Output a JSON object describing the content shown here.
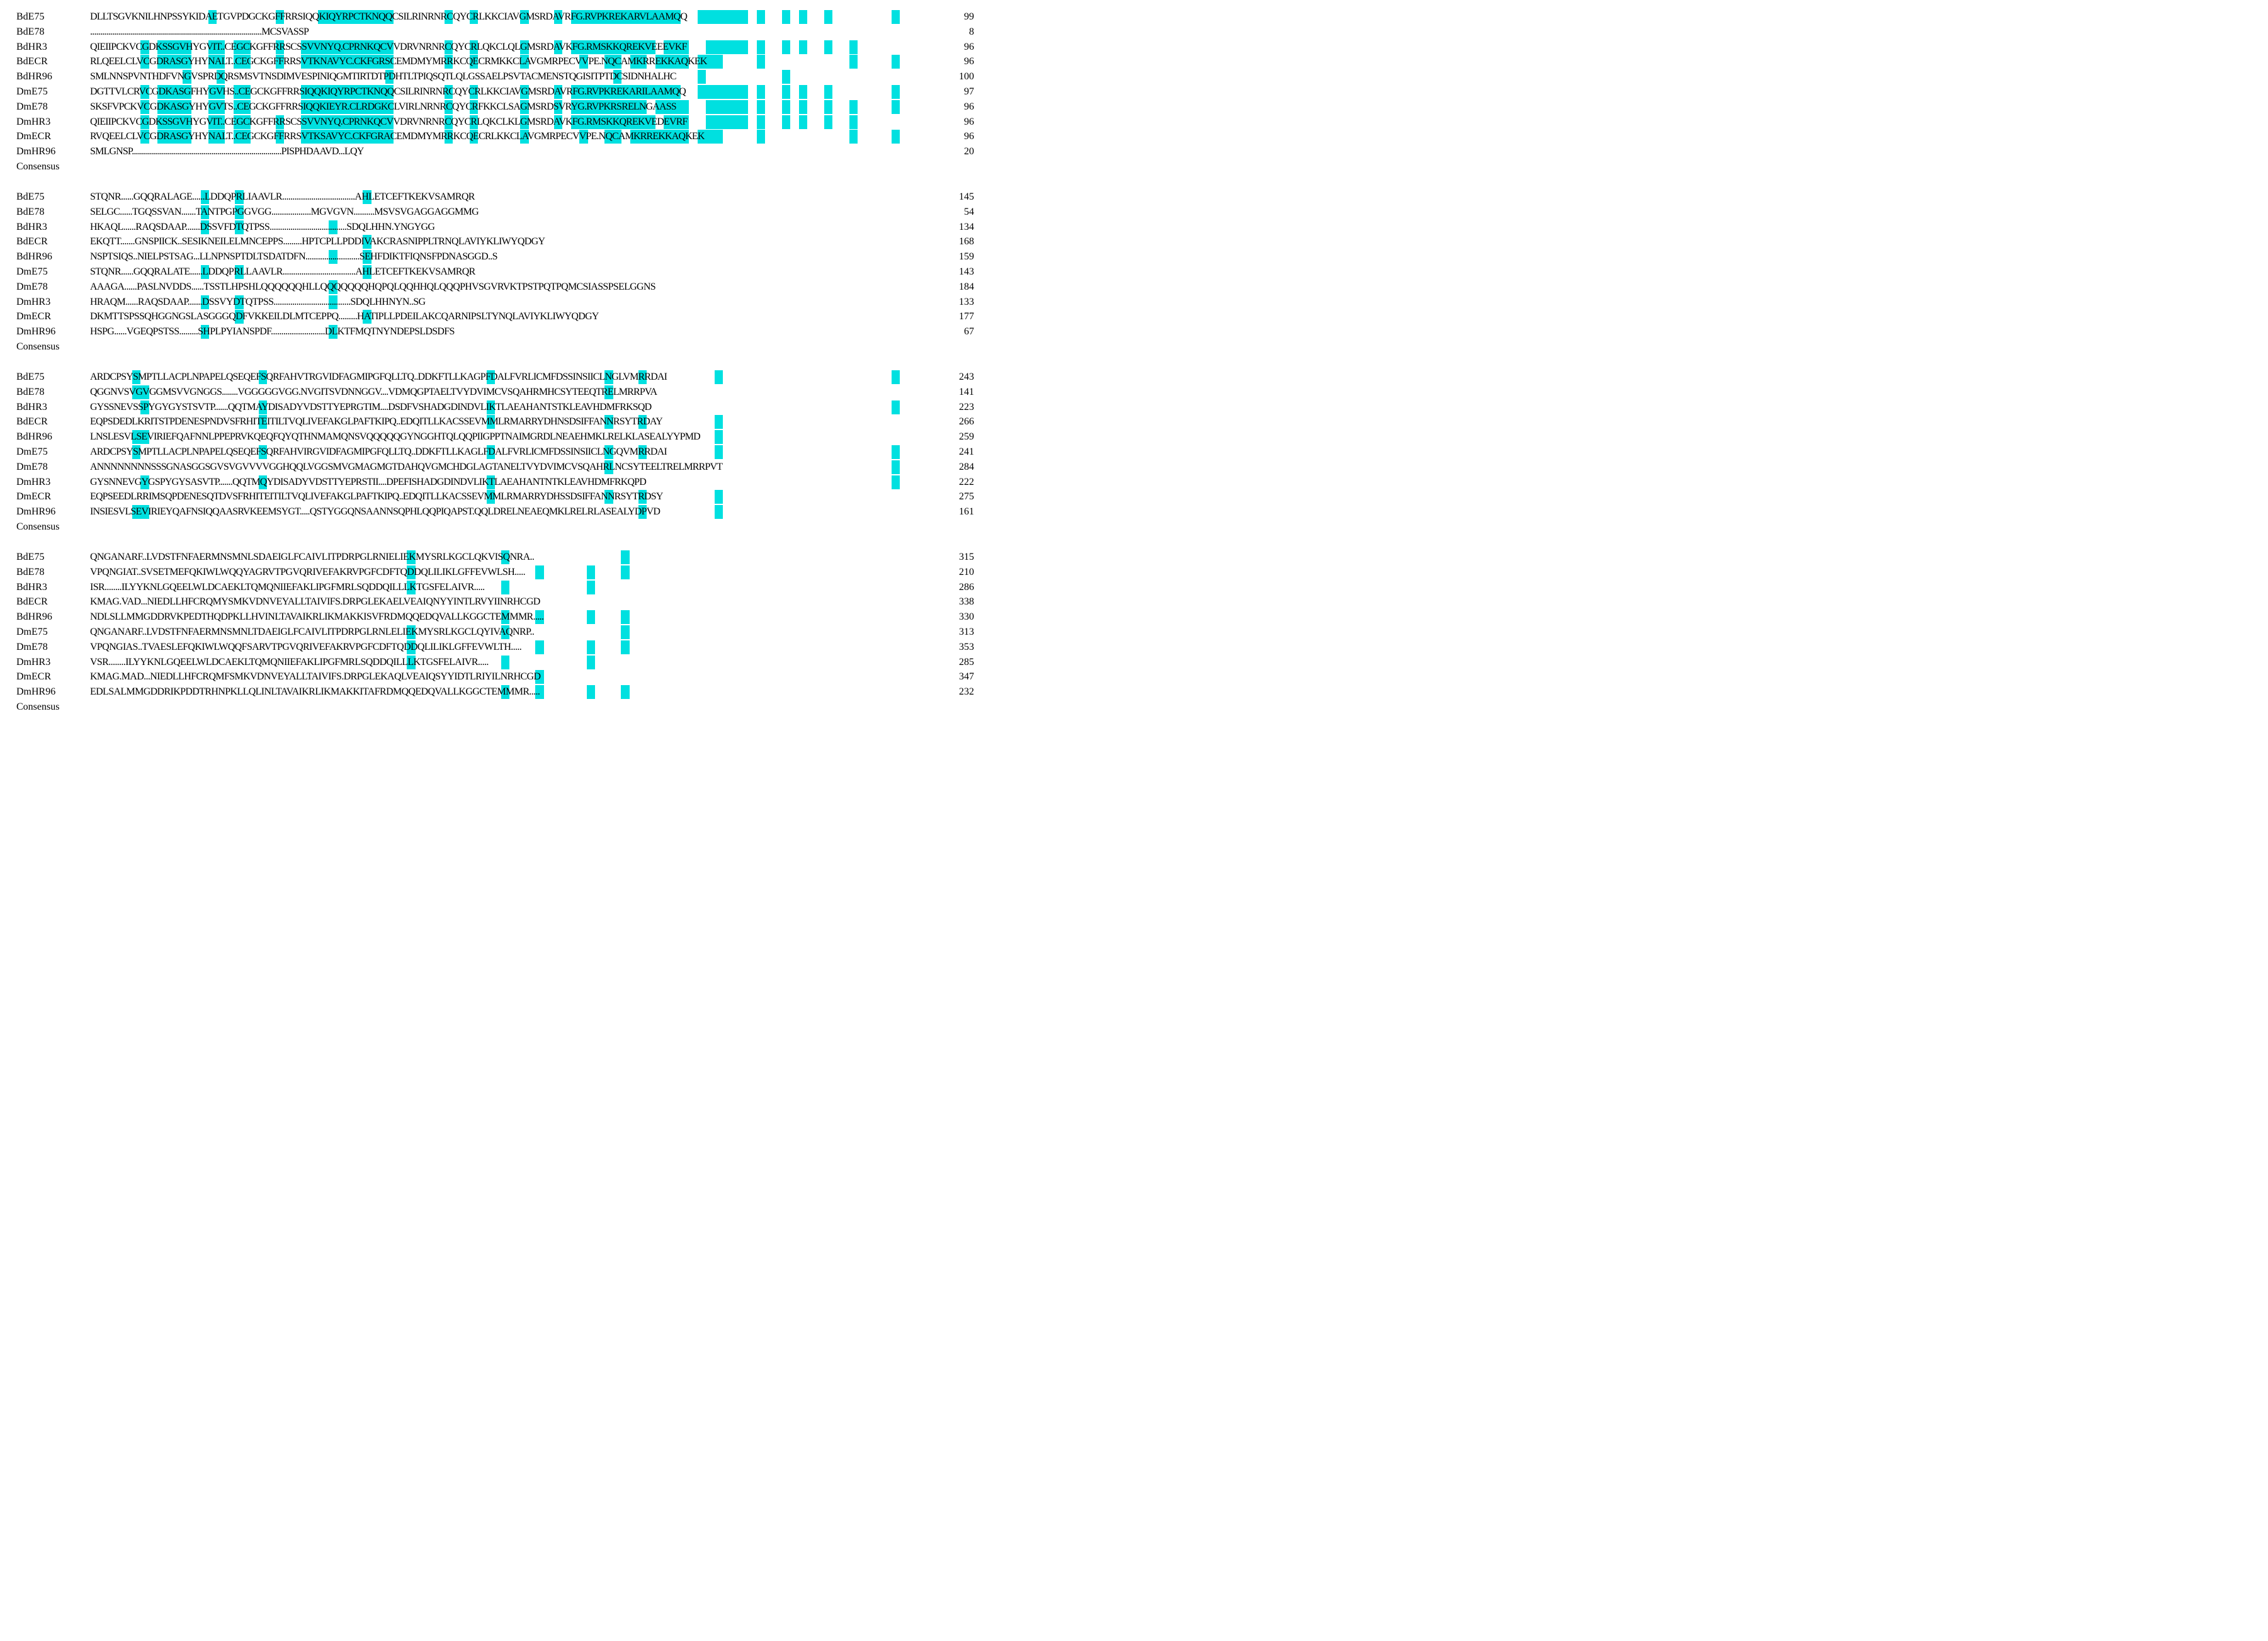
{
  "colors": {
    "conserved": "#00e0e0",
    "identical": "#ee6aa8"
  },
  "consensus_label": "Consensus",
  "blocks": [
    {
      "rows": [
        {
          "name": "BdE75",
          "seq": "DLLTSGVKNILHNPSSYKIDAETGVPDGCKGFFRRSIQQKIQYRPCTKNQQCSILRINRNRCQYCRLKKCIAVGMSRDAVRFG.RVPKREKARVLAAMQQ",
          "num": "99"
        },
        {
          "name": "BdE78",
          "seq": "......................................................................................MCSVASSP",
          "num": "8"
        },
        {
          "name": "BdHR3",
          "seq": "QIEIIPCKVCGDKSSGVHYGVIT..CEGCKGFFRRSCSSVVNYQ.CPRNKQCVVDRVNRNRCQYCRLQKCLQLGMSRDAVKFG.RMSKKQREKVEEEVKF",
          "num": "96"
        },
        {
          "name": "BdECR",
          "seq": "RLQEELCLVCGDRASGYHYNALT..CEGCKGFFRRSVTKNAVYC.CKFGRSCEMDMYMRRKCQECRMKKCLAVGMRPECVVPE.NQCAMKRREKKAQKEK",
          "num": "96"
        },
        {
          "name": "BdHR96",
          "seq": "SMLNNSPVNTHDFVNGVSPRDQRSMSVTNSDIMVESPINIQGMTIRTDTPDHTLTPIQSQTLQLGSSAELPSVTACMENSTQGISITPTDCSIDNHALHC",
          "num": "100"
        },
        {
          "name": "DmE75",
          "seq": "DGTTVLCRVCGDKASGFHYGVHS..CEGCKGFFRRSIQQKIQYRPCTKNQQCSILRINRNRCQYCRLKKCIAVGMSRDAVRFG.RVPKREKARILAAMQQ",
          "num": "97"
        },
        {
          "name": "DmE78",
          "seq": "SKSFVPCKVCGDKASGYHYGVTS..CEGCKGFFRRSIQQKIEYR.CLRDGKCLVIRLNRNRCQYCRFKKCLSAGMSRDSVRYG.RVPKRSRELNGAASS",
          "num": "96"
        },
        {
          "name": "DmHR3",
          "seq": "QIEIIPCKVCGDKSSGVHYGVIT..CEGCKGFFRRSCSSVVNYQ.CPRNKQCVVDRVNRNRCQYCRLQKCLKLGMSRDAVKFG.RMSKKQREKVEDEVRF",
          "num": "96"
        },
        {
          "name": "DmECR",
          "seq": "RVQEELCLVCGDRASGYHYNALT..CEGCKGFFRRSVTKSAVYC.CKFGRACEMDMYMRRKCQECRLKKCLAVGMRPECVVPE.NQCAMKRREKKAQKEK",
          "num": "96"
        },
        {
          "name": "DmHR96",
          "seq": "SMLGNSP...........................................................................PISPHDAAVD...LQY",
          "num": "20"
        }
      ]
    },
    {
      "rows": [
        {
          "name": "BdE75",
          "seq": "STQNR......GQQRALAGE......LDDQPRLIAAVLR...................................AHLETCEFTKEKVSAMRQR",
          "num": "145"
        },
        {
          "name": "BdE78",
          "seq": "SELGC......TGQSSVAN.......TANTPGPGGVGG...................MGVGVN..........MSVSVGAGGAGGMMG",
          "num": "54"
        },
        {
          "name": "BdHR3",
          "seq": "HKAQL......RAQSDAAP.......DSSVFDTQTPSS.....................................SDQLHHN.YNGYGG",
          "num": "134"
        },
        {
          "name": "BdECR",
          "seq": "EKQTT.......GNSPIICK..SESIKNEILELMNCEPPS.........HPTCPLLPDDIVAKCRASNIPPLTRNQLAVIYKLIWYQDGY",
          "num": "168"
        },
        {
          "name": "BdHR96",
          "seq": "NSPTSIQS..NIELPSTSAG...LLNPNSPTDLTSDATDFN..........................SEHFDIKTFIQNSFPDNASGGD..S",
          "num": "159"
        },
        {
          "name": "DmE75",
          "seq": "STQNR......GQQRALATE......LDDQPRLLAAVLR...................................AHLETCEFTKEKVSAMRQR",
          "num": "143"
        },
        {
          "name": "DmE78",
          "seq": "AAAGA......PASLNVDDS......TSSTLHPSHLQQQQQQHLLQQQQQQQHQPQLQQHHQLQQQPHVSGVRVKTPSTPQTPQMCSIASSPSELGGNS",
          "num": "184"
        },
        {
          "name": "DmHR3",
          "seq": "HRAQM......RAQSDAAP.......DSSVYDTQTPSS.....................................SDQLHHNYN..SG",
          "num": "133"
        },
        {
          "name": "DmECR",
          "seq": "DKMTTSPSSQHGGNGSLASGGGQDFVKKEILDLMTCEPPQ.........HATIPLLPDEILAKCQARNIPSLTYNQLAVIYKLIWYQDGY",
          "num": "177"
        },
        {
          "name": "DmHR96",
          "seq": "HSPG......VGEQPSTSS.........SHPLPYIANSPDF..........................DLKTFMQTNYNDEPSLDSDFS",
          "num": "67"
        }
      ]
    },
    {
      "rows": [
        {
          "name": "BdE75",
          "seq": "ARDCPSYSMPTLLACPLNPAPELQSEQEFSQRFAHVTRGVIDFAGMIPGFQLLTQ..DDKFTLLKAGPFDALFVRLICMFDSSINSIICLNGLVMRRDAI",
          "num": "243"
        },
        {
          "name": "BdE78",
          "seq": "QGGNVSVGVGGMSVVGNGGS........VGGGGGVGG.NVGITSVDNNGGV....VDMQGPTAELTVYDVIMCVSQAHRMHCSYTEEQTRELMRRPVA",
          "num": "141"
        },
        {
          "name": "BdHR3",
          "seq": "GYSSNEVSSPYGYGYSTSVTP.......QQTMAYDISADYVDSTTYEPRGTIM....DSDFVSHADGDINDVLIKTLAEAHANTSTKLEAVHDMFRKSQD",
          "num": "223"
        },
        {
          "name": "BdECR",
          "seq": "EQPSDEDLKRITSTPDENESPNDVSFRHITEITILTVQLIVEFAKGLPAFTKIPQ..EDQITLLKACSSEVMMLRMARRYDHNSDSIFFANNRSYTRDAY",
          "num": "266"
        },
        {
          "name": "BdHR96",
          "seq": "LNSLESVLSEVIRIEFQAFNNLPPEPRVKQEQFQYQTHNMAMQNSVQQQQQGYNGGHTQLQQPIIGPPTNAIMGRDLNEAEHMKLRELKLASEALYYPMD",
          "num": "259"
        },
        {
          "name": "DmE75",
          "seq": "ARDCPSYSMPTLLACPLNPAPELQSEQEFSQRFAHVIRGVIDFAGMIPGFQLLTQ..DDKFTLLKAGLFDALFVRLICMFDSSINSIICLNGQVMRRDAI",
          "num": "241"
        },
        {
          "name": "DmE78",
          "seq": "ANNNNNNNNSSSGNASGGSGVSVGVVVVGGHQQLVGGSMVGMAGMGTDAHQVGMCHDGLAGTANELTVYDVIMCVSQAHRLNCSYTEELTRELMRRPVT",
          "num": "284"
        },
        {
          "name": "DmHR3",
          "seq": "GYSNNEVGYGSPYGYSASVTP.......QQTMQYDISADYVDSTTYEPRSTII....DPEFISHADGDINDVLIKTLAEAHANTNTKLEAVHDMFRKQPD",
          "num": "222"
        },
        {
          "name": "DmECR",
          "seq": "EQPSEEDLRRIMSQPDENESQTDVSFRHITEITILTVQLIVEFAKGLPAFTKIPQ..EDQITLLKACSSEVMMLRMARRYDHSSDSIFFANNRSYTRDSY",
          "num": "275"
        },
        {
          "name": "DmHR96",
          "seq": "INSIESVLSEVIRIEYQAFNSIQQAASRVKEEMSYGT.....QSTYGGQNSAANNSQPHLQQPIQAPST.QQLDRELNEAEQMKLRELRLASEALYDPVD",
          "num": "161"
        }
      ]
    },
    {
      "rows": [
        {
          "name": "BdE75",
          "seq": "QNGANARF..LVDSTFNFAERMNSMNLSDAEIGLFCAIVLITPDRPGLRNIELIEKMYSRLKGCLQKVISQNRA..",
          "num": "315"
        },
        {
          "name": "BdE78",
          "seq": "VPQNGIAT..SVSETMEFQKIWLWQQYAGRVTPGVQRIVEFAKRVPGFCDFTQDDQLILIKLGFFEVWLSH.....",
          "num": "210"
        },
        {
          "name": "BdHR3",
          "seq": "ISR........ILYYKNLGQEELWLDCAEKLTQMQNIIEFAKLIPGFMRLSQDDQILLLKTGSFELAIVR.....",
          "num": "286"
        },
        {
          "name": "BdECR",
          "seq": "KMAG.VAD...NIEDLLHFCRQMYSMKVDNVEYALLTAIVIFS.DRPGLEKAELVEAIQNYYINTLRVYIINRHCGD",
          "num": "338"
        },
        {
          "name": "BdHR96",
          "seq": "NDLSLLMMGDDRVKPEDTHQDPKLLHVINLTAVAIKRLIKMAKKISVFRDMQQEDQVALLKGGCTEMMMR.....",
          "num": "330"
        },
        {
          "name": "DmE75",
          "seq": "QNGANARF..LVDSTFNFAERMNSMNLTDAEIGLFCAIVLITPDRPGLRNLELIEKMYSRLKGCLQYIVAQNRP..",
          "num": "313"
        },
        {
          "name": "DmE78",
          "seq": "VPQNGIAS..TVAESLEFQKIWLWQQFSARVTPGVQRIVEFAKRVPGFCDFTQDDQLILIKLGFFEVWLTH.....",
          "num": "353"
        },
        {
          "name": "DmHR3",
          "seq": "VSR........ILYYKNLGQEELWLDCAEKLTQMQNIIEFAKLIPGFMRLSQDDQILLLKTGSFELAIVR.....",
          "num": "285"
        },
        {
          "name": "DmECR",
          "seq": "KMAG.MAD...NIEDLLHFCRQMFSMKVDNVEYALLTAIVIFS.DRPGLEKAQLVEAIQSYYIDTLRIYILNRHCGD",
          "num": "347"
        },
        {
          "name": "DmHR96",
          "seq": "EDLSALMMGDDRIKPDDTRHNPKLLQLINLTAVAIKRLIKMAKKITAFRDMQQEDQVALLKGGCTEMMMR.....",
          "num": "232"
        }
      ]
    }
  ]
}
